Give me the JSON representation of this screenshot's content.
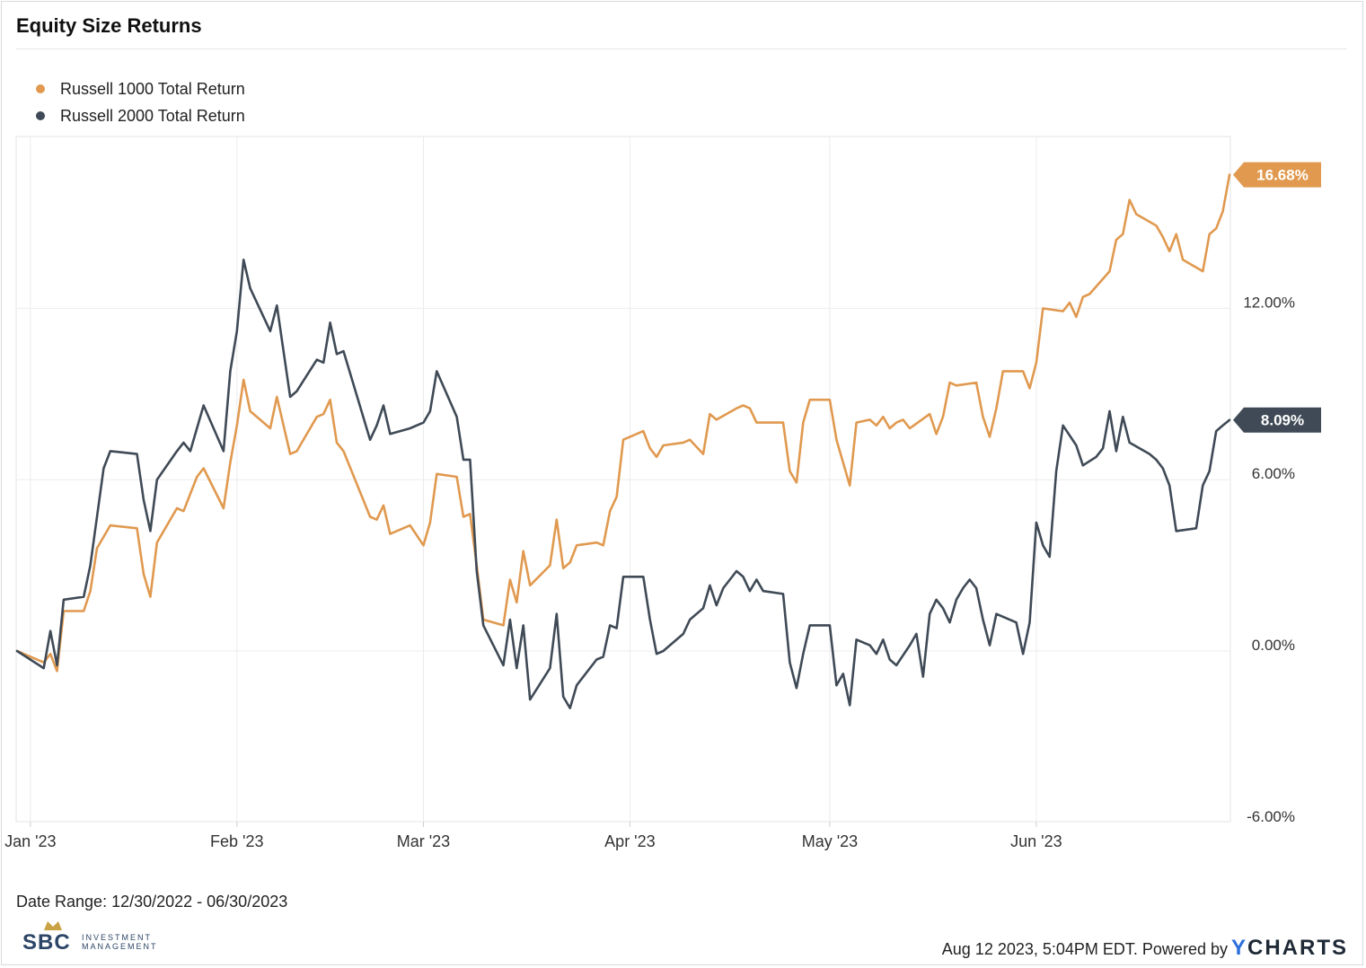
{
  "title": "Equity Size Returns",
  "footer": {
    "date_range": "Date Range: 12/30/2022 - 06/30/2023",
    "stamp": "Aug 12 2023, 5:04PM EDT. Powered by",
    "brand_y": "Y",
    "brand_rest": "CHARTS"
  },
  "logo": {
    "letters": "SBC",
    "line1": "INVESTMENT",
    "line2": "MANAGEMENT"
  },
  "chart_data": {
    "type": "line",
    "title": "Equity Size Returns",
    "xlabel": "",
    "ylabel": "",
    "ylim": [
      -6,
      18
    ],
    "y_ticks": [
      {
        "value": -6,
        "label": "-6.00%"
      },
      {
        "value": 0,
        "label": "0.00%"
      },
      {
        "value": 6,
        "label": "6.00%"
      },
      {
        "value": 12,
        "label": "12.00%"
      }
    ],
    "x_ticks": [
      {
        "day": 2,
        "label": "Jan '23"
      },
      {
        "day": 33,
        "label": "Feb '23"
      },
      {
        "day": 61,
        "label": "Mar '23"
      },
      {
        "day": 92,
        "label": "Apr '23"
      },
      {
        "day": 122,
        "label": "May '23"
      },
      {
        "day": 153,
        "label": "Jun '23"
      }
    ],
    "x_range": [
      0,
      182
    ],
    "legend_position": "top-left",
    "series": [
      {
        "name": "Russell 1000 Total Return",
        "color": "#e0994f",
        "end_label": "16.68%",
        "points": [
          [
            0,
            0
          ],
          [
            4,
            -0.4
          ],
          [
            5,
            -0.1
          ],
          [
            6,
            -0.7
          ],
          [
            7,
            1.4
          ],
          [
            10,
            1.4
          ],
          [
            11,
            2.1
          ],
          [
            12,
            3.6
          ],
          [
            14,
            4.4
          ],
          [
            18,
            4.3
          ],
          [
            19,
            2.7
          ],
          [
            20,
            1.9
          ],
          [
            21,
            3.8
          ],
          [
            24,
            5.0
          ],
          [
            25,
            4.9
          ],
          [
            27,
            6.1
          ],
          [
            28,
            6.4
          ],
          [
            31,
            5.0
          ],
          [
            32,
            6.6
          ],
          [
            33,
            7.9
          ],
          [
            34,
            9.5
          ],
          [
            35,
            8.4
          ],
          [
            38,
            7.8
          ],
          [
            39,
            8.9
          ],
          [
            41,
            6.9
          ],
          [
            42,
            7.0
          ],
          [
            45,
            8.2
          ],
          [
            46,
            8.3
          ],
          [
            47,
            8.8
          ],
          [
            48,
            7.3
          ],
          [
            49,
            7.0
          ],
          [
            53,
            4.7
          ],
          [
            54,
            4.6
          ],
          [
            55,
            5.1
          ],
          [
            56,
            4.1
          ],
          [
            59,
            4.4
          ],
          [
            61,
            3.7
          ],
          [
            62,
            4.5
          ],
          [
            63,
            6.2
          ],
          [
            66,
            6.1
          ],
          [
            67,
            4.7
          ],
          [
            68,
            4.8
          ],
          [
            69,
            3.0
          ],
          [
            70,
            1.1
          ],
          [
            73,
            0.9
          ],
          [
            74,
            2.5
          ],
          [
            75,
            1.7
          ],
          [
            76,
            3.5
          ],
          [
            77,
            2.3
          ],
          [
            80,
            3.0
          ],
          [
            81,
            4.6
          ],
          [
            82,
            2.9
          ],
          [
            83,
            3.1
          ],
          [
            84,
            3.7
          ],
          [
            87,
            3.8
          ],
          [
            88,
            3.7
          ],
          [
            89,
            4.9
          ],
          [
            90,
            5.4
          ],
          [
            91,
            7.4
          ],
          [
            94,
            7.7
          ],
          [
            95,
            7.1
          ],
          [
            96,
            6.8
          ],
          [
            97,
            7.2
          ],
          [
            100,
            7.3
          ],
          [
            101,
            7.4
          ],
          [
            103,
            6.9
          ],
          [
            104,
            8.3
          ],
          [
            105,
            8.1
          ],
          [
            108,
            8.5
          ],
          [
            109,
            8.6
          ],
          [
            110,
            8.5
          ],
          [
            111,
            8.0
          ],
          [
            114,
            8.0
          ],
          [
            115,
            8.0
          ],
          [
            116,
            6.3
          ],
          [
            117,
            5.9
          ],
          [
            118,
            8.0
          ],
          [
            119,
            8.8
          ],
          [
            122,
            8.8
          ],
          [
            123,
            7.4
          ],
          [
            125,
            5.8
          ],
          [
            126,
            8.0
          ],
          [
            128,
            8.1
          ],
          [
            129,
            7.9
          ],
          [
            130,
            8.2
          ],
          [
            131,
            7.8
          ],
          [
            132,
            8.0
          ],
          [
            133,
            8.1
          ],
          [
            134,
            7.8
          ],
          [
            137,
            8.3
          ],
          [
            138,
            7.6
          ],
          [
            139,
            8.2
          ],
          [
            140,
            9.4
          ],
          [
            141,
            9.3
          ],
          [
            144,
            9.4
          ],
          [
            145,
            8.2
          ],
          [
            146,
            7.5
          ],
          [
            147,
            8.5
          ],
          [
            148,
            9.8
          ],
          [
            151,
            9.8
          ],
          [
            152,
            9.2
          ],
          [
            153,
            10.1
          ],
          [
            154,
            12.0
          ],
          [
            157,
            11.9
          ],
          [
            158,
            12.2
          ],
          [
            159,
            11.7
          ],
          [
            160,
            12.4
          ],
          [
            161,
            12.5
          ],
          [
            164,
            13.3
          ],
          [
            165,
            14.4
          ],
          [
            166,
            14.6
          ],
          [
            167,
            15.8
          ],
          [
            168,
            15.3
          ],
          [
            171,
            14.9
          ],
          [
            172,
            14.5
          ],
          [
            173,
            14.0
          ],
          [
            174,
            14.6
          ],
          [
            175,
            13.7
          ],
          [
            178,
            13.3
          ],
          [
            179,
            14.6
          ],
          [
            180,
            14.8
          ],
          [
            181,
            15.4
          ],
          [
            182,
            16.68
          ]
        ]
      },
      {
        "name": "Russell 2000 Total Return",
        "color": "#3f4a56",
        "end_label": "8.09%",
        "points": [
          [
            0,
            0
          ],
          [
            4,
            -0.6
          ],
          [
            5,
            0.7
          ],
          [
            6,
            -0.5
          ],
          [
            7,
            1.8
          ],
          [
            10,
            1.9
          ],
          [
            11,
            3.0
          ],
          [
            12,
            4.7
          ],
          [
            13,
            6.4
          ],
          [
            14,
            7.0
          ],
          [
            18,
            6.9
          ],
          [
            19,
            5.3
          ],
          [
            20,
            4.2
          ],
          [
            21,
            6.0
          ],
          [
            24,
            7.0
          ],
          [
            25,
            7.3
          ],
          [
            26,
            7.0
          ],
          [
            28,
            8.6
          ],
          [
            31,
            7.0
          ],
          [
            32,
            9.8
          ],
          [
            33,
            11.2
          ],
          [
            34,
            13.7
          ],
          [
            35,
            12.7
          ],
          [
            38,
            11.2
          ],
          [
            39,
            12.1
          ],
          [
            41,
            8.9
          ],
          [
            42,
            9.1
          ],
          [
            45,
            10.2
          ],
          [
            46,
            10.1
          ],
          [
            47,
            11.5
          ],
          [
            48,
            10.4
          ],
          [
            49,
            10.5
          ],
          [
            53,
            7.4
          ],
          [
            54,
            7.9
          ],
          [
            55,
            8.6
          ],
          [
            56,
            7.6
          ],
          [
            59,
            7.8
          ],
          [
            61,
            8.0
          ],
          [
            62,
            8.4
          ],
          [
            63,
            9.8
          ],
          [
            66,
            8.2
          ],
          [
            67,
            6.7
          ],
          [
            68,
            6.7
          ],
          [
            69,
            2.8
          ],
          [
            70,
            0.9
          ],
          [
            73,
            -0.5
          ],
          [
            74,
            1.1
          ],
          [
            75,
            -0.6
          ],
          [
            76,
            0.9
          ],
          [
            77,
            -1.7
          ],
          [
            80,
            -0.6
          ],
          [
            81,
            1.3
          ],
          [
            82,
            -1.6
          ],
          [
            83,
            -2.0
          ],
          [
            84,
            -1.2
          ],
          [
            87,
            -0.3
          ],
          [
            88,
            -0.2
          ],
          [
            89,
            0.9
          ],
          [
            90,
            0.8
          ],
          [
            91,
            2.6
          ],
          [
            94,
            2.6
          ],
          [
            95,
            1.1
          ],
          [
            96,
            -0.1
          ],
          [
            97,
            0.0
          ],
          [
            100,
            0.6
          ],
          [
            101,
            1.1
          ],
          [
            103,
            1.5
          ],
          [
            104,
            2.3
          ],
          [
            105,
            1.6
          ],
          [
            106,
            2.2
          ],
          [
            108,
            2.8
          ],
          [
            109,
            2.6
          ],
          [
            110,
            2.1
          ],
          [
            111,
            2.5
          ],
          [
            112,
            2.1
          ],
          [
            115,
            2.0
          ],
          [
            116,
            -0.4
          ],
          [
            117,
            -1.3
          ],
          [
            118,
            -0.1
          ],
          [
            119,
            0.9
          ],
          [
            122,
            0.9
          ],
          [
            123,
            -1.2
          ],
          [
            124,
            -0.8
          ],
          [
            125,
            -1.9
          ],
          [
            126,
            0.4
          ],
          [
            128,
            0.2
          ],
          [
            129,
            -0.1
          ],
          [
            130,
            0.4
          ],
          [
            131,
            -0.3
          ],
          [
            132,
            -0.5
          ],
          [
            134,
            0.2
          ],
          [
            135,
            0.6
          ],
          [
            136,
            -0.9
          ],
          [
            137,
            1.3
          ],
          [
            138,
            1.8
          ],
          [
            139,
            1.5
          ],
          [
            140,
            1.0
          ],
          [
            141,
            1.8
          ],
          [
            142,
            2.2
          ],
          [
            143,
            2.5
          ],
          [
            144,
            2.2
          ],
          [
            145,
            1.1
          ],
          [
            146,
            0.2
          ],
          [
            147,
            1.3
          ],
          [
            150,
            1.0
          ],
          [
            151,
            -0.1
          ],
          [
            152,
            1.0
          ],
          [
            153,
            4.5
          ],
          [
            154,
            3.7
          ],
          [
            155,
            3.3
          ],
          [
            156,
            6.3
          ],
          [
            157,
            7.9
          ],
          [
            159,
            7.2
          ],
          [
            160,
            6.5
          ],
          [
            162,
            6.8
          ],
          [
            163,
            7.1
          ],
          [
            164,
            8.4
          ],
          [
            165,
            7.0
          ],
          [
            166,
            8.2
          ],
          [
            167,
            7.3
          ],
          [
            170,
            6.9
          ],
          [
            171,
            6.7
          ],
          [
            172,
            6.4
          ],
          [
            173,
            5.8
          ],
          [
            174,
            4.2
          ],
          [
            177,
            4.3
          ],
          [
            178,
            5.8
          ],
          [
            179,
            6.3
          ],
          [
            180,
            7.7
          ],
          [
            181,
            7.9
          ],
          [
            182,
            8.09
          ]
        ]
      }
    ]
  }
}
